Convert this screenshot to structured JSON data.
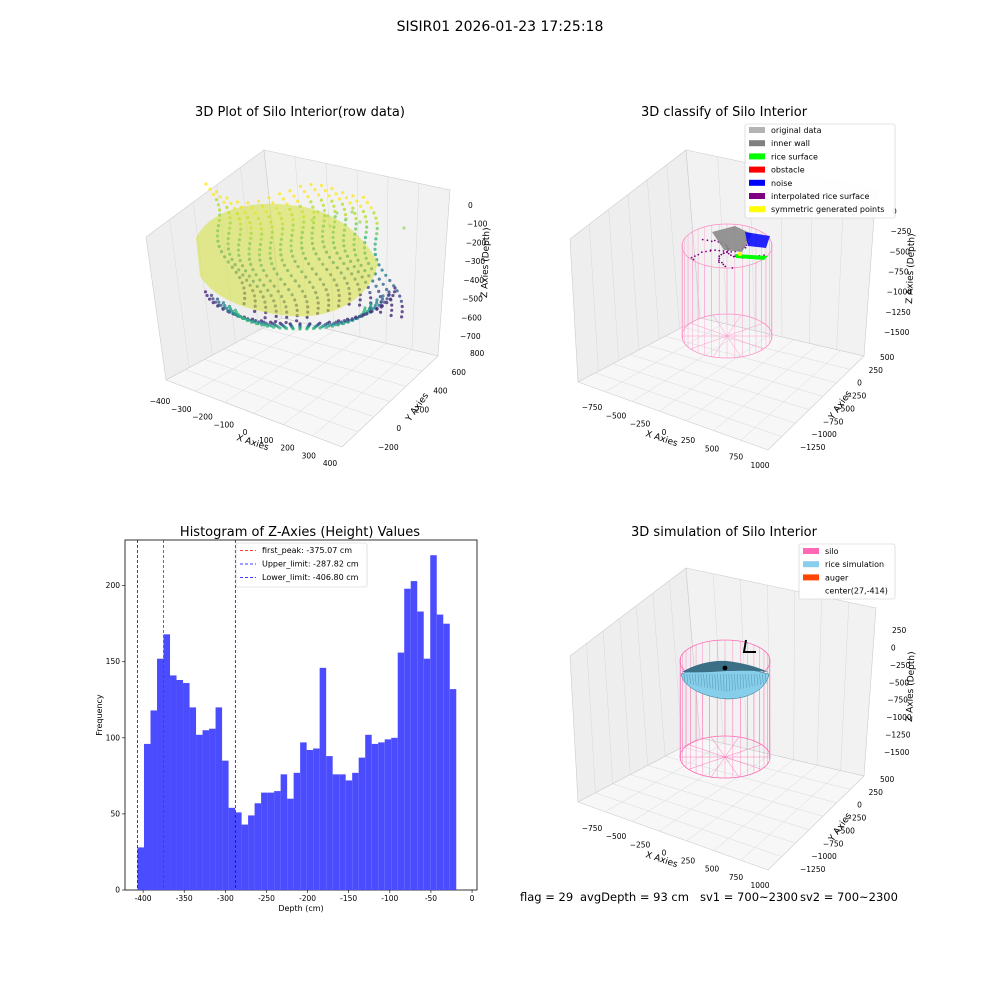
{
  "figure": {
    "suptitle": "SISIR01 2026-01-23 17:25:18",
    "footer": {
      "flag": "flag = 29",
      "avg_depth": "avgDepth = 93 cm",
      "sv1": "sv1 = 700~2300",
      "sv2": "sv2 = 700~2300"
    }
  },
  "chart_data": [
    {
      "type": "scatter",
      "title": "3D Plot of Silo Interior(row data)",
      "xlabel": "X Axies",
      "ylabel": "Y Axies",
      "zlabel": "Z Axies (Depth)",
      "x_ticks": [
        "−400",
        "−300",
        "−200",
        "−100",
        "0",
        "100",
        "200",
        "300",
        "400"
      ],
      "y_ticks": [
        "−200",
        "0",
        "200",
        "400",
        "600",
        "800"
      ],
      "z_ticks": [
        "0",
        "−100",
        "−200",
        "−300",
        "−400",
        "−500",
        "−600",
        "−700"
      ],
      "colormap": "viridis"
    },
    {
      "type": "scatter",
      "title": "3D classify of Silo Interior",
      "xlabel": "X Axies",
      "ylabel": "Y Axies",
      "zlabel": "Z Axies (Depth)",
      "x_ticks": [
        "−750",
        "−500",
        "−250",
        "0",
        "250",
        "500",
        "750",
        "1000"
      ],
      "y_ticks": [
        "−1250",
        "−1000",
        "−750",
        "−500",
        "−250",
        "0",
        "250",
        "500"
      ],
      "z_ticks": [
        "0",
        "−250",
        "−500",
        "−750",
        "−1000",
        "−1250",
        "−1500"
      ],
      "legend": [
        {
          "label": "original data",
          "color": "#b3b3b3"
        },
        {
          "label": "inner wall",
          "color": "#808080"
        },
        {
          "label": "rice surface",
          "color": "#00ff00"
        },
        {
          "label": "obstacle",
          "color": "#ff0000"
        },
        {
          "label": "noise",
          "color": "#0000ff"
        },
        {
          "label": "interpolated rice surface",
          "color": "#800080"
        },
        {
          "label": "symmetric generated points",
          "color": "#ffff00"
        }
      ],
      "legend_loc": "upper right"
    },
    {
      "type": "bar",
      "title": "Histogram of Z-Axies (Height) Values",
      "xlabel": "Depth (cm)",
      "ylabel": "Frequency",
      "xlim": [
        -422,
        6
      ],
      "ylim": [
        0,
        230
      ],
      "x_ticks": [
        -400,
        -350,
        -300,
        -250,
        -200,
        -150,
        -100,
        -50,
        0
      ],
      "y_ticks": [
        0,
        50,
        100,
        150,
        200
      ],
      "bin_start": -406.8,
      "bin_width": 7.91,
      "values": [
        28,
        96,
        118,
        152,
        168,
        141,
        138,
        136,
        120,
        102,
        105,
        106,
        120,
        85,
        54,
        51,
        43,
        49,
        57,
        64,
        64,
        65,
        76,
        60,
        77,
        97,
        92,
        93,
        146,
        88,
        76,
        76,
        72,
        77,
        87,
        102,
        96,
        97,
        99,
        100,
        156,
        198,
        203,
        183,
        152,
        220,
        181,
        175,
        132
      ],
      "bar_color": "#4c4cff",
      "vlines": [
        {
          "label": "first_peak: -375.07 cm",
          "x": -375.07,
          "color": "#ff0000"
        },
        {
          "label": "Upper_limit: -287.82 cm",
          "x": -287.82,
          "color": "#0000ff"
        },
        {
          "label": "Lower_limit: -406.80 cm",
          "x": -406.8,
          "color": "#0000ff"
        }
      ],
      "legend_loc": "upper center"
    },
    {
      "type": "scatter",
      "title": "3D simulation of Silo Interior",
      "xlabel": "X Axies",
      "ylabel": "Y Axies",
      "zlabel": "Z Axies (Depth)",
      "x_ticks": [
        "−750",
        "−500",
        "−250",
        "0",
        "250",
        "500",
        "750",
        "1000"
      ],
      "y_ticks": [
        "−1250",
        "−1000",
        "−750",
        "−500",
        "−250",
        "0",
        "250",
        "500"
      ],
      "z_ticks": [
        "250",
        "0",
        "−250",
        "−500",
        "−750",
        "−1000",
        "−1250",
        "−1500"
      ],
      "legend": [
        {
          "label": "silo",
          "color": "#ff69b4"
        },
        {
          "label": "rice simulation",
          "color": "#87ceeb"
        },
        {
          "label": "auger",
          "color": "#ff4500"
        },
        {
          "label": "center(27,-414)",
          "color": ""
        }
      ],
      "legend_loc": "upper right"
    }
  ]
}
